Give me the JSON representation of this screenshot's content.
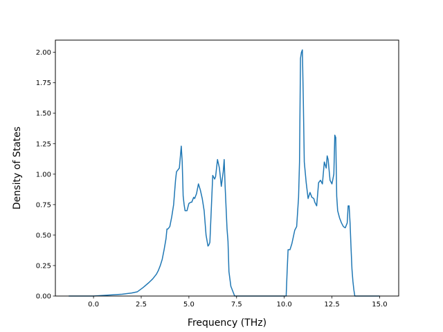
{
  "chart_data": {
    "type": "line",
    "title": "",
    "xlabel": "Frequency (THz)",
    "ylabel": "Density of States",
    "xlim": [
      -2.0,
      16.0
    ],
    "ylim": [
      0.0,
      2.1
    ],
    "xticks": [
      0.0,
      2.5,
      5.0,
      7.5,
      10.0,
      12.5,
      15.0
    ],
    "xtick_labels": [
      "0.0",
      "2.5",
      "5.0",
      "7.5",
      "10.0",
      "12.5",
      "15.0"
    ],
    "yticks": [
      0.0,
      0.25,
      0.5,
      0.75,
      1.0,
      1.25,
      1.5,
      1.75,
      2.0
    ],
    "ytick_labels": [
      "0.00",
      "0.25",
      "0.50",
      "0.75",
      "1.00",
      "1.25",
      "1.50",
      "1.75",
      "2.00"
    ],
    "grid": false,
    "legend": "none",
    "line_color": "#1f77b4",
    "series": [
      {
        "x": [
          -1.3,
          0.0,
          1.0,
          1.5,
          2.0,
          2.3,
          2.6,
          2.9,
          3.1,
          3.3,
          3.4,
          3.5,
          3.6,
          3.7,
          3.8,
          3.85,
          3.9,
          4.0,
          4.1,
          4.2,
          4.3,
          4.35,
          4.5,
          4.6,
          4.65,
          4.7,
          4.75,
          4.8,
          4.85,
          4.9,
          5.0,
          5.1,
          5.15,
          5.25,
          5.3,
          5.4,
          5.5,
          5.6,
          5.7,
          5.8,
          5.85,
          5.9,
          6.0,
          6.05,
          6.1,
          6.25,
          6.35,
          6.4,
          6.5,
          6.6,
          6.7,
          6.8,
          6.85,
          6.9,
          7.0,
          7.05,
          7.1,
          7.2,
          7.4,
          10.1,
          10.15,
          10.2,
          10.3,
          10.4,
          10.55,
          10.65,
          10.75,
          10.8,
          10.85,
          10.9,
          10.95,
          11.0,
          11.05,
          11.15,
          11.25,
          11.35,
          11.45,
          11.55,
          11.6,
          11.7,
          11.8,
          11.9,
          12.0,
          12.1,
          12.2,
          12.25,
          12.3,
          12.4,
          12.5,
          12.6,
          12.65,
          12.7,
          12.75,
          12.8,
          12.9,
          13.0,
          13.1,
          13.2,
          13.3,
          13.35,
          13.4,
          13.45,
          13.5,
          13.55,
          13.6,
          13.65,
          13.7,
          13.75,
          15.0
        ],
        "y": [
          0.0,
          0.0,
          0.01,
          0.015,
          0.025,
          0.035,
          0.07,
          0.11,
          0.14,
          0.18,
          0.21,
          0.25,
          0.3,
          0.38,
          0.47,
          0.55,
          0.55,
          0.57,
          0.65,
          0.75,
          0.95,
          1.02,
          1.05,
          1.23,
          1.1,
          0.82,
          0.75,
          0.7,
          0.7,
          0.7,
          0.76,
          0.77,
          0.77,
          0.81,
          0.8,
          0.84,
          0.92,
          0.87,
          0.8,
          0.7,
          0.6,
          0.5,
          0.41,
          0.42,
          0.44,
          0.99,
          0.96,
          0.98,
          1.12,
          1.05,
          0.9,
          1.02,
          1.12,
          0.9,
          0.55,
          0.45,
          0.2,
          0.08,
          0.0,
          0.0,
          0.2,
          0.38,
          0.38,
          0.43,
          0.54,
          0.57,
          0.81,
          1.1,
          1.95,
          2.0,
          2.02,
          1.6,
          1.1,
          0.93,
          0.8,
          0.85,
          0.81,
          0.8,
          0.77,
          0.74,
          0.93,
          0.95,
          0.92,
          1.1,
          1.05,
          1.15,
          1.12,
          0.95,
          0.92,
          1.0,
          1.32,
          1.3,
          0.82,
          0.7,
          0.64,
          0.6,
          0.57,
          0.56,
          0.6,
          0.74,
          0.74,
          0.6,
          0.4,
          0.22,
          0.12,
          0.05,
          0.0,
          0.0,
          0.0
        ]
      }
    ]
  }
}
